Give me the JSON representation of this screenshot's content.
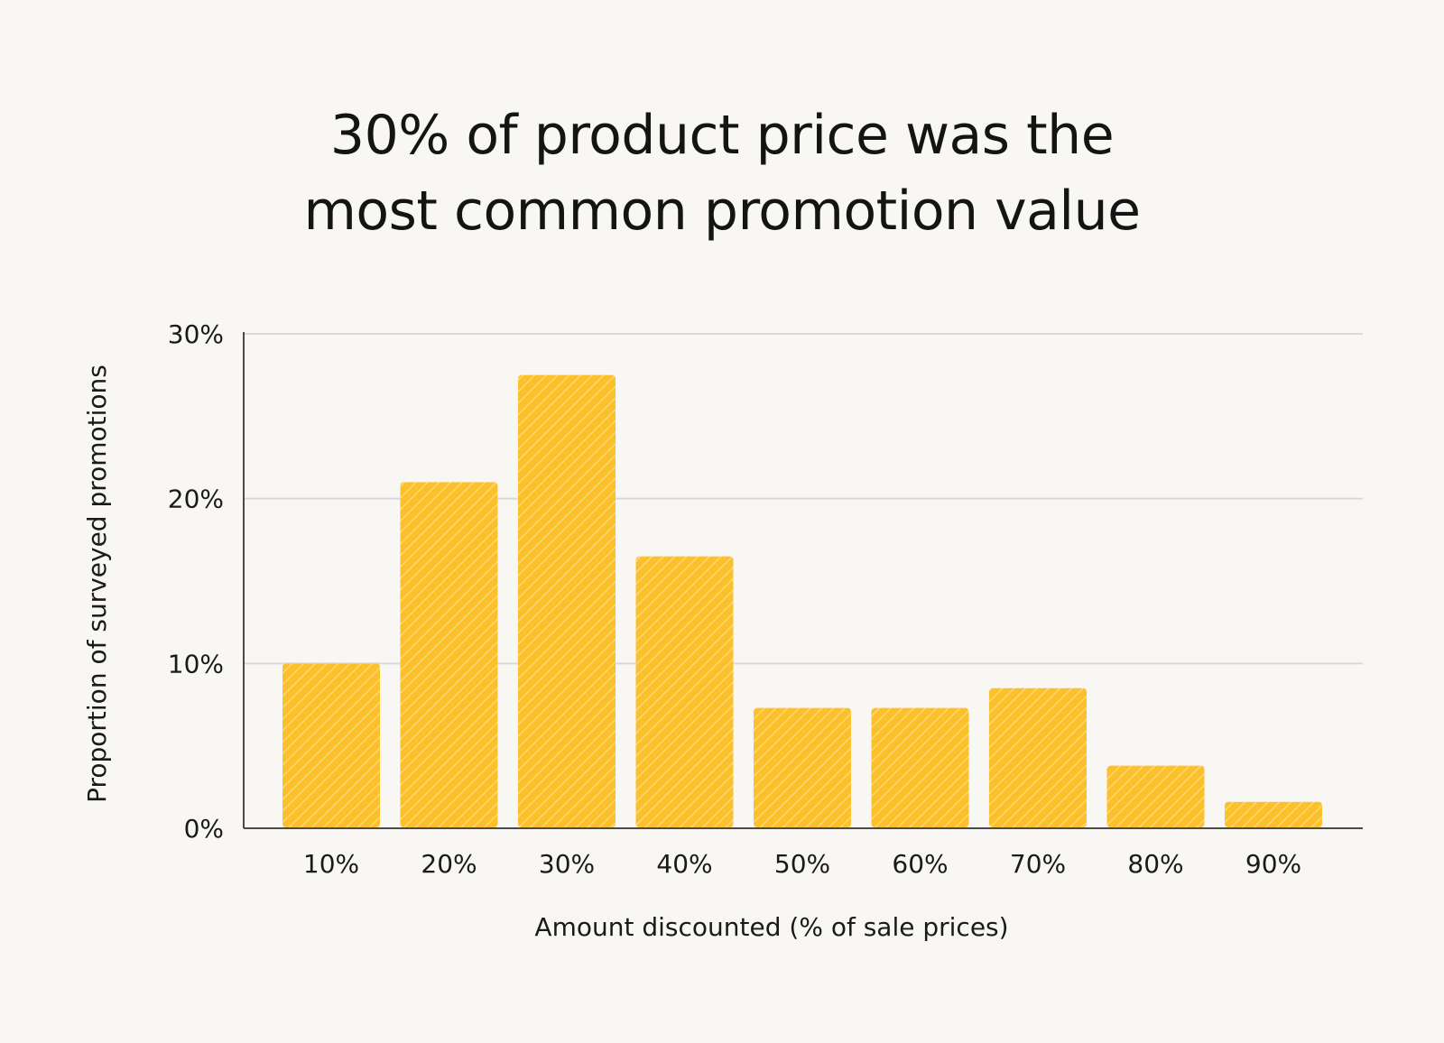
{
  "title_lines": [
    "30% of product price was the",
    "most common promotion value"
  ],
  "colors": {
    "background": "#f8f7f4",
    "bar": "#fcc02b",
    "hatch": "#fde7a3",
    "grid": "#d9d9dc",
    "axis": "#4a4a4a",
    "text": "#1a1a1a"
  },
  "chart_data": {
    "type": "bar",
    "categories": [
      "10%",
      "20%",
      "30%",
      "40%",
      "50%",
      "60%",
      "70%",
      "80%",
      "90%"
    ],
    "values": [
      10.0,
      21.0,
      27.5,
      16.5,
      7.3,
      7.3,
      8.5,
      3.8,
      1.6
    ],
    "xlabel": "Amount discounted (% of sale prices)",
    "ylabel": "Proportion of surveyed promotions",
    "ylim": [
      0,
      30
    ],
    "yticks": [
      0,
      10,
      20,
      30
    ],
    "ytick_labels": [
      "0%",
      "10%",
      "20%",
      "30%"
    ],
    "grid": true,
    "legend": "none"
  }
}
